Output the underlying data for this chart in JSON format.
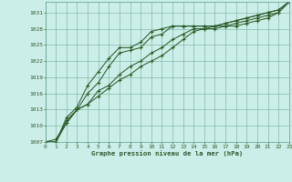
{
  "title": "Graphe pression niveau de la mer (hPa)",
  "background_color": "#cceee8",
  "grid_color": "#5a9e8a",
  "line_color": "#2d5a2d",
  "marker_color": "#2d6020",
  "xlim": [
    0,
    23
  ],
  "ylim": [
    1007,
    1033
  ],
  "yticks": [
    1007,
    1010,
    1013,
    1016,
    1019,
    1022,
    1025,
    1028,
    1031
  ],
  "xticks": [
    0,
    1,
    2,
    3,
    4,
    5,
    6,
    7,
    8,
    9,
    10,
    11,
    12,
    13,
    14,
    15,
    16,
    17,
    18,
    19,
    20,
    21,
    22,
    23
  ],
  "series": [
    [
      1007.0,
      1007.0,
      1011.0,
      1013.0,
      1016.0,
      1018.0,
      1021.0,
      1023.5,
      1024.0,
      1024.5,
      1026.5,
      1027.0,
      1028.5,
      1028.5,
      1028.5,
      1028.5,
      1028.5,
      1029.0,
      1029.5,
      1030.0,
      1030.5,
      1031.0,
      1031.5,
      1033.0
    ],
    [
      1007.0,
      1007.0,
      1011.5,
      1013.5,
      1017.5,
      1020.0,
      1022.5,
      1024.5,
      1024.5,
      1025.5,
      1027.5,
      1028.0,
      1028.5,
      1028.5,
      1028.5,
      1028.5,
      1028.5,
      1029.0,
      1029.5,
      1030.0,
      1030.5,
      1031.0,
      1031.5,
      1033.0
    ],
    [
      1007.0,
      1007.5,
      1010.5,
      1013.0,
      1014.0,
      1016.5,
      1017.5,
      1019.5,
      1021.0,
      1022.0,
      1023.5,
      1024.5,
      1026.0,
      1027.0,
      1028.0,
      1028.0,
      1028.5,
      1028.5,
      1029.0,
      1029.5,
      1030.0,
      1030.5,
      1031.0,
      1033.0
    ],
    [
      1007.0,
      1007.0,
      1010.5,
      1013.0,
      1014.0,
      1015.5,
      1017.0,
      1018.5,
      1019.5,
      1021.0,
      1022.0,
      1023.0,
      1024.5,
      1026.0,
      1027.5,
      1028.0,
      1028.0,
      1028.5,
      1028.5,
      1029.0,
      1029.5,
      1030.0,
      1031.0,
      1033.0
    ]
  ]
}
